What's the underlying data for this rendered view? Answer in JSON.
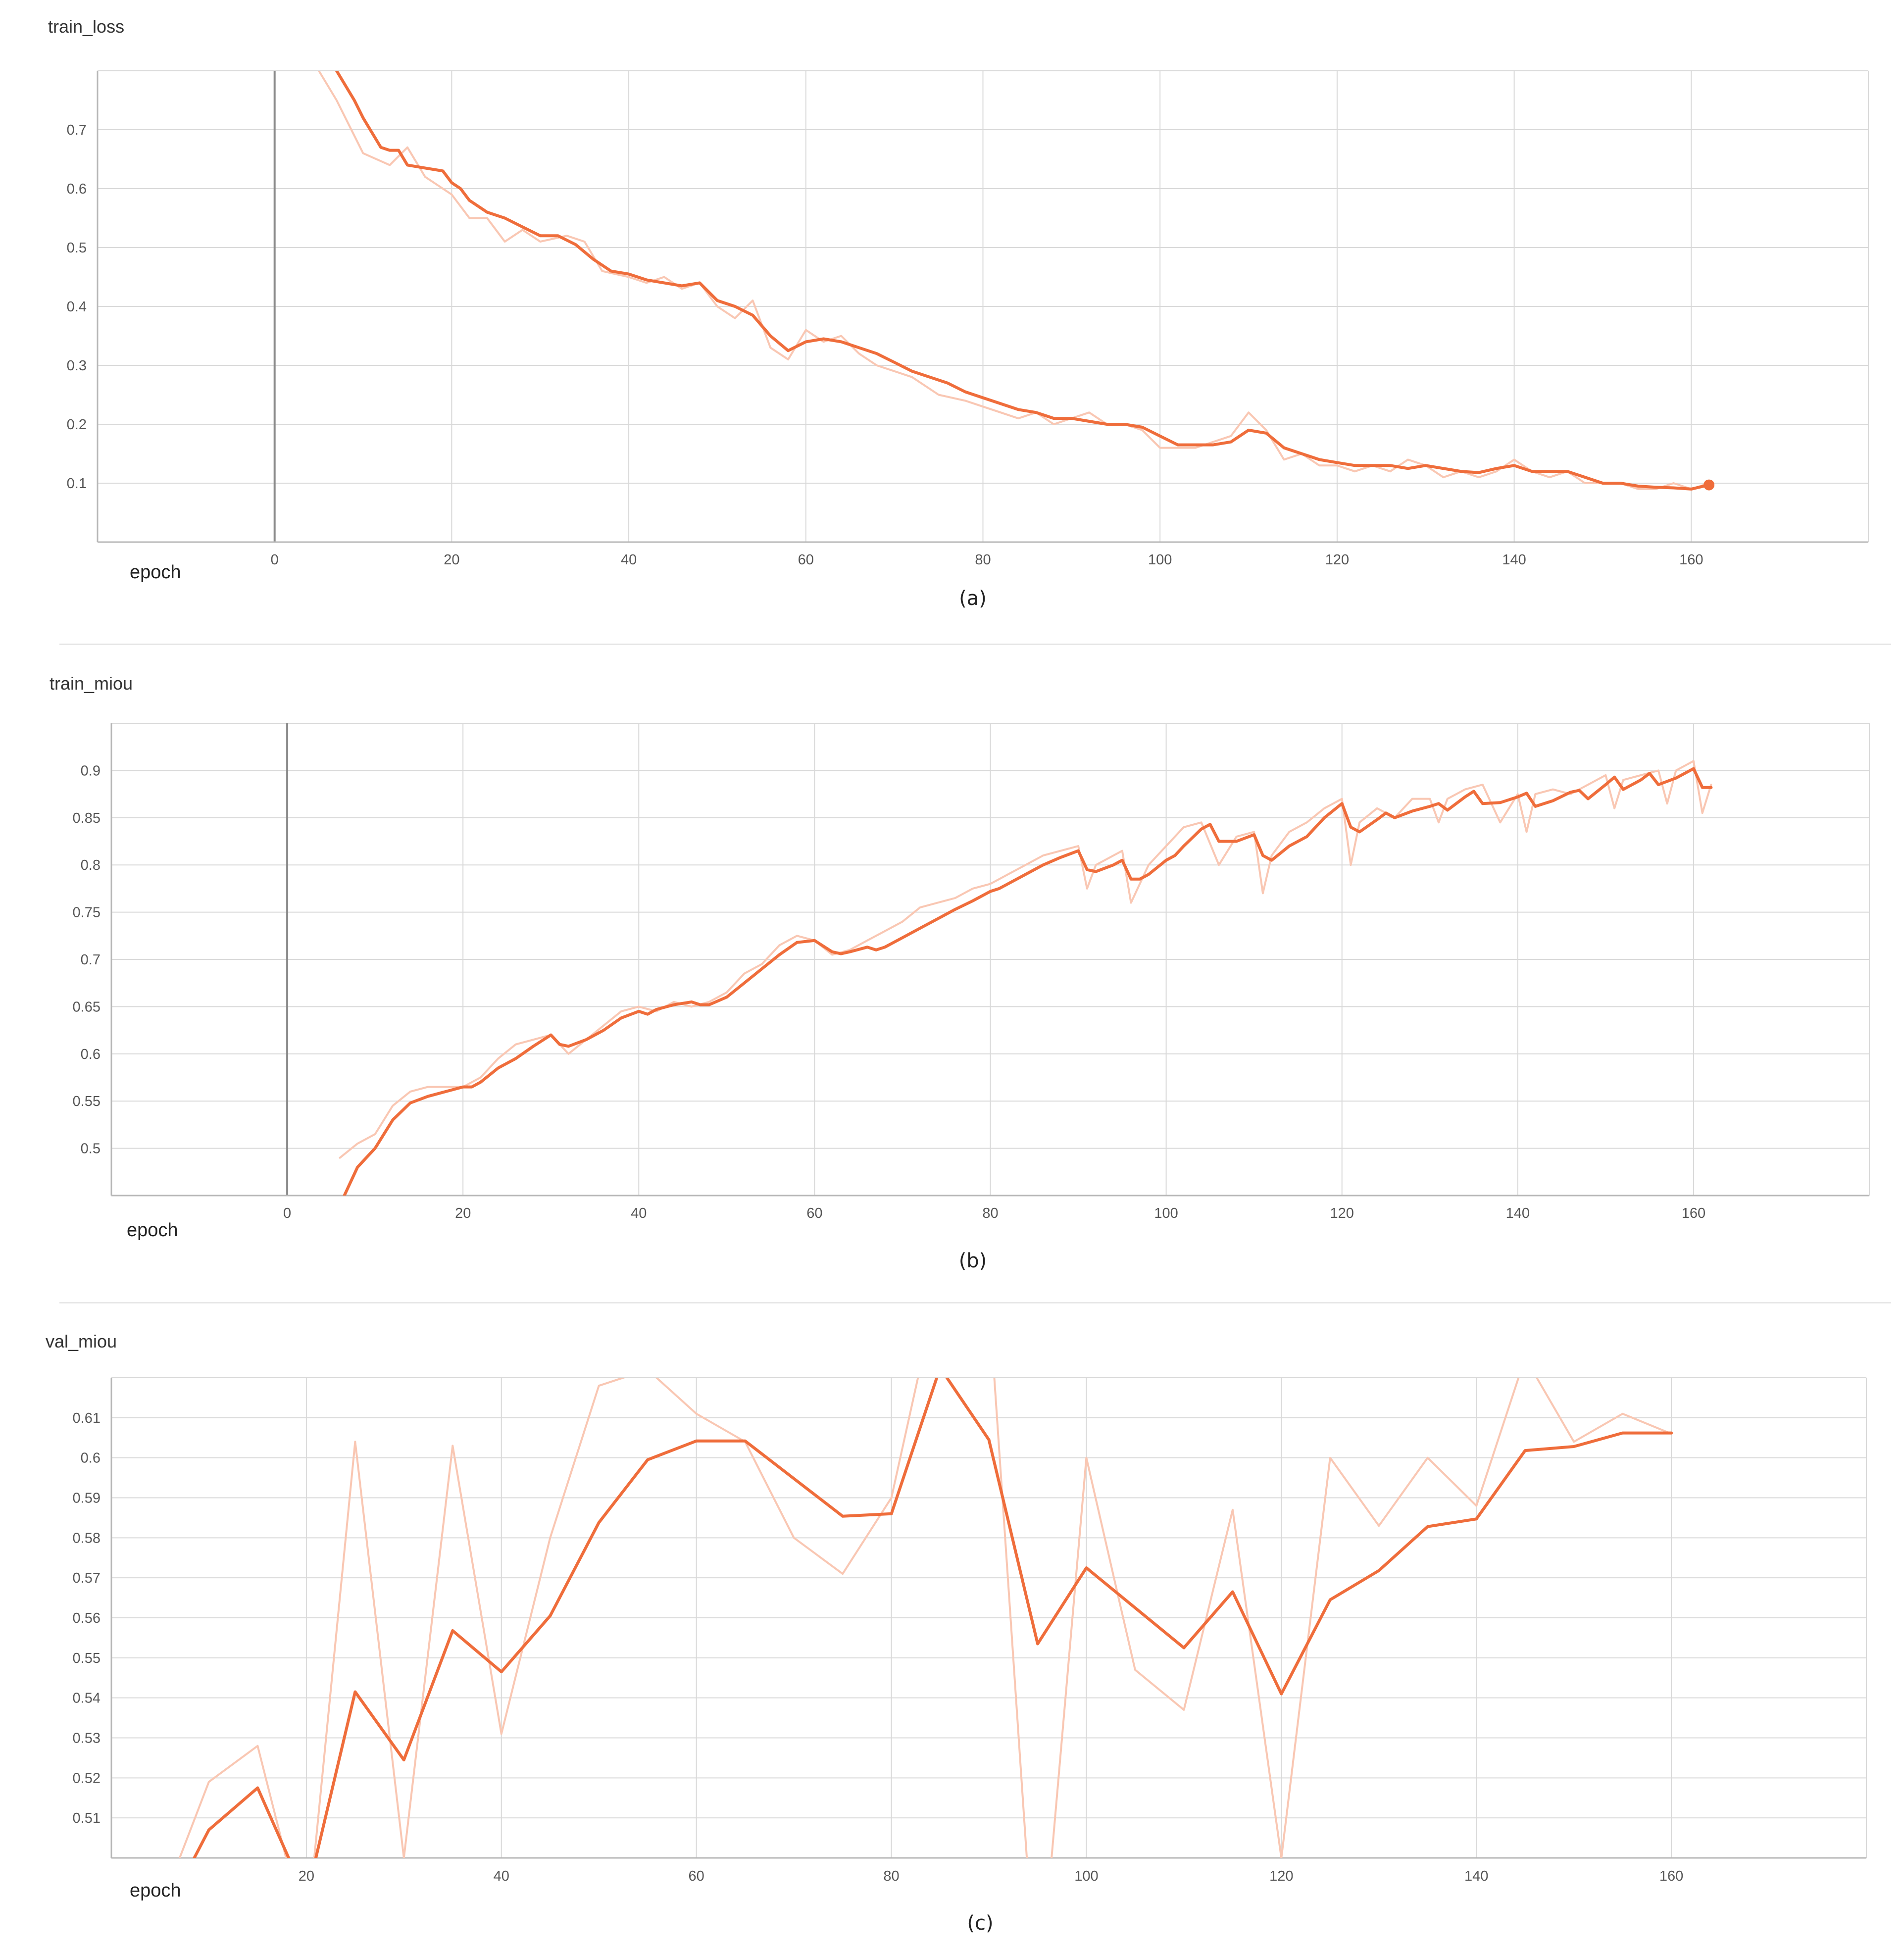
{
  "colors": {
    "smoothed": "#ef6d3b",
    "raw": "#f9c7b3",
    "grid": "#d9d9d9"
  },
  "figure_captions": [
    "(a)",
    "(b)",
    "(c)"
  ],
  "chart_data": [
    {
      "type": "line",
      "title": "train_loss",
      "xlabel": "epoch",
      "ylabel": "",
      "caption": "(a)",
      "xlim": [
        -20,
        180
      ],
      "ylim": [
        0.0,
        0.8
      ],
      "xticks": [
        0,
        20,
        40,
        60,
        80,
        100,
        120,
        140,
        160
      ],
      "yticks": [
        0.1,
        0.2,
        0.3,
        0.4,
        0.5,
        0.6,
        0.7
      ],
      "grid": true,
      "end_marker": true,
      "series": [
        {
          "style": "raw",
          "x": [
            5,
            7,
            10,
            13,
            15,
            17,
            20,
            22,
            24,
            26,
            28,
            30,
            33,
            35,
            37,
            40,
            42,
            44,
            46,
            48,
            50,
            52,
            54,
            56,
            58,
            60,
            62,
            64,
            66,
            68,
            70,
            72,
            75,
            78,
            80,
            82,
            84,
            86,
            88,
            90,
            92,
            94,
            96,
            98,
            100,
            102,
            104,
            106,
            108,
            110,
            112,
            114,
            116,
            118,
            120,
            122,
            124,
            126,
            128,
            130,
            132,
            134,
            136,
            138,
            140,
            142,
            144,
            146,
            148,
            150,
            152,
            154,
            156,
            158,
            160,
            162
          ],
          "y": [
            0.8,
            0.75,
            0.66,
            0.64,
            0.67,
            0.62,
            0.59,
            0.55,
            0.55,
            0.51,
            0.53,
            0.51,
            0.52,
            0.51,
            0.46,
            0.45,
            0.44,
            0.45,
            0.43,
            0.44,
            0.4,
            0.38,
            0.41,
            0.33,
            0.31,
            0.36,
            0.34,
            0.35,
            0.32,
            0.3,
            0.29,
            0.28,
            0.25,
            0.24,
            0.23,
            0.22,
            0.21,
            0.22,
            0.2,
            0.21,
            0.22,
            0.2,
            0.2,
            0.19,
            0.16,
            0.16,
            0.16,
            0.17,
            0.18,
            0.22,
            0.19,
            0.14,
            0.15,
            0.13,
            0.13,
            0.12,
            0.13,
            0.12,
            0.14,
            0.13,
            0.11,
            0.12,
            0.11,
            0.12,
            0.14,
            0.12,
            0.11,
            0.12,
            0.1,
            0.1,
            0.1,
            0.09,
            0.09,
            0.1,
            0.09,
            0.1
          ]
        },
        {
          "style": "smoothed",
          "x": [
            7,
            9,
            10,
            12,
            13,
            14,
            15,
            17,
            19,
            20,
            21,
            22,
            24,
            26,
            28,
            30,
            32,
            34,
            36,
            38,
            40,
            42,
            44,
            46,
            48,
            50,
            52,
            54,
            56,
            58,
            60,
            62,
            64,
            66,
            68,
            70,
            72,
            74,
            76,
            78,
            80,
            82,
            84,
            86,
            88,
            90,
            92,
            94,
            96,
            98,
            100,
            102,
            104,
            106,
            108,
            110,
            112,
            114,
            116,
            118,
            120,
            122,
            124,
            126,
            128,
            130,
            132,
            134,
            136,
            138,
            140,
            142,
            144,
            146,
            148,
            150,
            152,
            154,
            156,
            158,
            160,
            162
          ],
          "y": [
            0.8,
            0.75,
            0.72,
            0.67,
            0.665,
            0.665,
            0.64,
            0.635,
            0.63,
            0.61,
            0.6,
            0.58,
            0.56,
            0.55,
            0.535,
            0.52,
            0.52,
            0.505,
            0.48,
            0.46,
            0.455,
            0.445,
            0.44,
            0.435,
            0.44,
            0.41,
            0.4,
            0.385,
            0.35,
            0.325,
            0.34,
            0.345,
            0.34,
            0.33,
            0.32,
            0.305,
            0.29,
            0.28,
            0.27,
            0.255,
            0.245,
            0.235,
            0.225,
            0.22,
            0.21,
            0.21,
            0.205,
            0.2,
            0.2,
            0.195,
            0.18,
            0.165,
            0.165,
            0.165,
            0.17,
            0.19,
            0.185,
            0.16,
            0.15,
            0.14,
            0.135,
            0.13,
            0.13,
            0.13,
            0.125,
            0.13,
            0.125,
            0.12,
            0.118,
            0.125,
            0.13,
            0.12,
            0.12,
            0.12,
            0.11,
            0.1,
            0.1,
            0.095,
            0.093,
            0.092,
            0.09,
            0.097
          ]
        }
      ]
    },
    {
      "type": "line",
      "title": "train_miou",
      "xlabel": "epoch",
      "ylabel": "",
      "caption": "(b)",
      "xlim": [
        -20,
        180
      ],
      "ylim": [
        0.45,
        0.95
      ],
      "xticks": [
        0,
        20,
        40,
        60,
        80,
        100,
        120,
        140,
        160
      ],
      "yticks": [
        0.5,
        0.55,
        0.6,
        0.65,
        0.7,
        0.75,
        0.8,
        0.85,
        0.9
      ],
      "grid": true,
      "series": [
        {
          "style": "raw",
          "x": [
            6,
            8,
            10,
            12,
            14,
            16,
            18,
            20,
            22,
            24,
            26,
            28,
            30,
            32,
            34,
            36,
            38,
            40,
            42,
            44,
            46,
            48,
            50,
            52,
            54,
            56,
            58,
            60,
            62,
            64,
            66,
            68,
            70,
            72,
            74,
            76,
            78,
            80,
            82,
            84,
            86,
            88,
            90,
            91,
            92,
            94,
            95,
            96,
            98,
            100,
            102,
            104,
            106,
            108,
            110,
            111,
            112,
            114,
            116,
            118,
            120,
            121,
            122,
            124,
            126,
            128,
            130,
            131,
            132,
            134,
            136,
            138,
            140,
            141,
            142,
            144,
            146,
            148,
            150,
            151,
            152,
            154,
            156,
            157,
            158,
            160,
            161,
            162
          ],
          "y": [
            0.49,
            0.505,
            0.515,
            0.545,
            0.56,
            0.565,
            0.565,
            0.565,
            0.575,
            0.595,
            0.61,
            0.615,
            0.62,
            0.6,
            0.615,
            0.63,
            0.645,
            0.65,
            0.645,
            0.655,
            0.65,
            0.655,
            0.665,
            0.685,
            0.695,
            0.715,
            0.725,
            0.72,
            0.705,
            0.71,
            0.72,
            0.73,
            0.74,
            0.755,
            0.76,
            0.765,
            0.775,
            0.78,
            0.79,
            0.8,
            0.81,
            0.815,
            0.82,
            0.775,
            0.8,
            0.81,
            0.815,
            0.76,
            0.8,
            0.82,
            0.84,
            0.845,
            0.8,
            0.83,
            0.835,
            0.77,
            0.81,
            0.835,
            0.845,
            0.86,
            0.87,
            0.8,
            0.845,
            0.86,
            0.85,
            0.87,
            0.87,
            0.845,
            0.87,
            0.88,
            0.885,
            0.845,
            0.875,
            0.835,
            0.875,
            0.88,
            0.875,
            0.885,
            0.895,
            0.86,
            0.89,
            0.895,
            0.9,
            0.865,
            0.9,
            0.91,
            0.855,
            0.885
          ]
        },
        {
          "style": "smoothed",
          "x": [
            6.5,
            8,
            10,
            12,
            14,
            16,
            18,
            20,
            21,
            22,
            24,
            26,
            28,
            30,
            31,
            32,
            34,
            36,
            38,
            40,
            41,
            42,
            44,
            46,
            47,
            48,
            50,
            52,
            54,
            56,
            58,
            60,
            62,
            63,
            64,
            66,
            67,
            68,
            70,
            72,
            74,
            76,
            78,
            80,
            81,
            82,
            84,
            86,
            88,
            90,
            91,
            92,
            94,
            95,
            96,
            97,
            98,
            100,
            101,
            102,
            104,
            105,
            106,
            108,
            110,
            111,
            112,
            114,
            116,
            118,
            120,
            121,
            122,
            124,
            125,
            126,
            128,
            130,
            131,
            132,
            134,
            135,
            136,
            138,
            140,
            141,
            142,
            144,
            146,
            147,
            148,
            150,
            151,
            152,
            154,
            155,
            156,
            158,
            160,
            161,
            162
          ],
          "y": [
            0.45,
            0.48,
            0.5,
            0.53,
            0.548,
            0.555,
            0.56,
            0.565,
            0.565,
            0.57,
            0.585,
            0.595,
            0.608,
            0.62,
            0.61,
            0.608,
            0.615,
            0.625,
            0.638,
            0.645,
            0.642,
            0.647,
            0.652,
            0.655,
            0.652,
            0.652,
            0.66,
            0.675,
            0.69,
            0.705,
            0.718,
            0.72,
            0.708,
            0.706,
            0.708,
            0.713,
            0.71,
            0.713,
            0.723,
            0.733,
            0.743,
            0.753,
            0.762,
            0.772,
            0.775,
            0.78,
            0.79,
            0.8,
            0.808,
            0.815,
            0.795,
            0.793,
            0.8,
            0.805,
            0.785,
            0.785,
            0.79,
            0.805,
            0.81,
            0.82,
            0.838,
            0.843,
            0.825,
            0.825,
            0.832,
            0.81,
            0.805,
            0.82,
            0.83,
            0.85,
            0.865,
            0.84,
            0.835,
            0.848,
            0.855,
            0.85,
            0.857,
            0.862,
            0.865,
            0.858,
            0.872,
            0.878,
            0.865,
            0.866,
            0.872,
            0.876,
            0.862,
            0.868,
            0.877,
            0.879,
            0.87,
            0.885,
            0.893,
            0.88,
            0.89,
            0.897,
            0.885,
            0.892,
            0.902,
            0.882,
            0.882
          ]
        }
      ]
    },
    {
      "type": "line",
      "title": "val_miou",
      "xlabel": "epoch",
      "ylabel": "",
      "caption": "(c)",
      "xlim": [
        0,
        180
      ],
      "ylim": [
        0.5,
        0.62
      ],
      "xticks": [
        20,
        40,
        60,
        80,
        100,
        120,
        140,
        160
      ],
      "yticks": [
        0.51,
        0.52,
        0.53,
        0.54,
        0.55,
        0.56,
        0.57,
        0.58,
        0.59,
        0.6,
        0.61
      ],
      "grid": true,
      "series": [
        {
          "style": "raw",
          "x": [
            7,
            10,
            15,
            20,
            25,
            30,
            35,
            40,
            45,
            50,
            55,
            60,
            65,
            70,
            75,
            80,
            85,
            90,
            95,
            100,
            105,
            110,
            115,
            120,
            125,
            130,
            135,
            140,
            145,
            150,
            155,
            160
          ],
          "y": [
            0.5,
            0.519,
            0.528,
            0.48,
            0.604,
            0.5,
            0.603,
            0.531,
            0.58,
            0.618,
            0.622,
            0.611,
            0.604,
            0.58,
            0.571,
            0.59,
            0.645,
            0.64,
            0.46,
            0.6,
            0.547,
            0.537,
            0.587,
            0.5,
            0.6,
            0.583,
            0.6,
            0.588,
            0.625,
            0.604,
            0.611,
            0.606
          ]
        },
        {
          "style": "smoothed",
          "x": [
            8.5,
            10,
            15,
            20,
            25,
            30,
            35,
            40,
            45,
            50,
            55,
            60,
            65,
            70,
            75,
            80,
            85,
            90,
            95,
            100,
            105,
            110,
            115,
            120,
            125,
            130,
            135,
            140,
            145,
            150,
            155,
            160
          ],
          "y": [
            0.5,
            0.507,
            0.5175,
            0.49,
            0.5415,
            0.5245,
            0.5568,
            0.5465,
            0.5605,
            0.5838,
            0.5995,
            0.6042,
            0.6042,
            0.5948,
            0.5854,
            0.586,
            0.6225,
            0.6045,
            0.5535,
            0.5725,
            0.5625,
            0.5525,
            0.5665,
            0.541,
            0.5645,
            0.5718,
            0.5828,
            0.5847,
            0.6018,
            0.6028,
            0.6062,
            0.6062
          ]
        }
      ]
    }
  ]
}
